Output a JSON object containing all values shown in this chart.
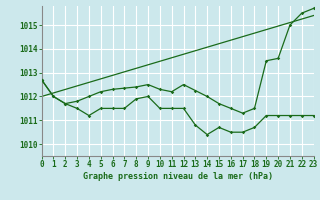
{
  "title": "Graphe pression niveau de la mer (hPa)",
  "background_color": "#cce8ec",
  "grid_color": "#ffffff",
  "line_color": "#1a6b1a",
  "xlim": [
    0,
    23
  ],
  "ylim": [
    1009.5,
    1015.8
  ],
  "yticks": [
    1010,
    1011,
    1012,
    1013,
    1014,
    1015
  ],
  "xticks": [
    0,
    1,
    2,
    3,
    4,
    5,
    6,
    7,
    8,
    9,
    10,
    11,
    12,
    13,
    14,
    15,
    16,
    17,
    18,
    19,
    20,
    21,
    22,
    23
  ],
  "s1": [
    1012.7,
    1012.0,
    1011.7,
    1011.5,
    1011.2,
    1011.5,
    1011.5,
    1011.5,
    1011.9,
    1012.0,
    1011.5,
    1011.5,
    1011.5,
    1010.8,
    1010.4,
    1010.7,
    1010.5,
    1010.5,
    1010.7,
    1011.2,
    1011.2,
    1011.2,
    1011.2,
    1011.2
  ],
  "s2": [
    1012.7,
    1012.0,
    1011.7,
    1011.8,
    1012.0,
    1012.2,
    1012.3,
    1012.35,
    1012.4,
    1012.5,
    1012.3,
    1012.2,
    1012.5,
    1012.25,
    1012.0,
    1011.7,
    1011.5,
    1011.3,
    1011.5,
    1013.5,
    1013.6,
    1015.0,
    1015.5,
    1015.7
  ],
  "s3x": [
    0,
    23
  ],
  "s3y": [
    1012.0,
    1015.4
  ],
  "figsize": [
    3.2,
    2.0
  ],
  "dpi": 100
}
